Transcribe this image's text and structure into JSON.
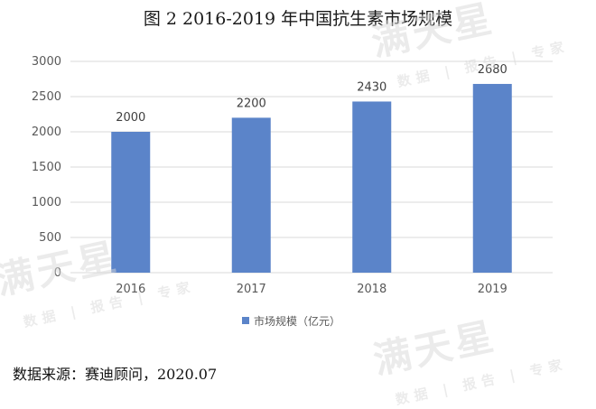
{
  "figure": {
    "title": "图 2 2016-2019 年中国抗生素市场规模",
    "source": "数据来源：赛迪顾问，2020.07"
  },
  "watermark": {
    "brand": "满天星",
    "tagline": "数据 | 报告 | 专家"
  },
  "colors": {
    "bar": "#5b84c9",
    "grid": "#d9d9d9",
    "axis_text": "#595959"
  },
  "chart_data": {
    "type": "bar",
    "categories": [
      "2016",
      "2017",
      "2018",
      "2019"
    ],
    "series": [
      {
        "name": "市场规模（亿元）",
        "values": [
          2000,
          2200,
          2430,
          2680
        ]
      }
    ],
    "data_labels": [
      "2000",
      "2200",
      "2430",
      "2680"
    ],
    "ylim": [
      0,
      3000
    ],
    "yticks": [
      0,
      500,
      1000,
      1500,
      2000,
      2500,
      3000
    ],
    "grid": true,
    "legend": "bottom"
  }
}
